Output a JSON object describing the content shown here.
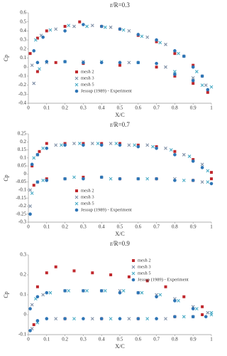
{
  "chart_data": [
    {
      "type": "scatter",
      "title": "r/R=0.3",
      "x_label": "X/C",
      "y_label": "Cp",
      "xlim": [
        0,
        1
      ],
      "xticks": [
        0,
        0.1,
        0.2,
        0.3,
        0.4,
        0.5,
        0.6,
        0.7,
        0.8,
        0.9,
        1
      ],
      "ylim": [
        -0.4,
        0.6
      ],
      "yticks": [
        -0.4,
        -0.3,
        -0.2,
        -0.1,
        0,
        0.1,
        0.2,
        0.3,
        0.4,
        0.5,
        0.6
      ],
      "grid": false,
      "legend": "lower center",
      "series": [
        {
          "name": "mesh 2",
          "color": "#c0282d",
          "marker": "square",
          "x": [
            0.01,
            0.05,
            0.1,
            0.2,
            0.28,
            0.4,
            0.5,
            0.6,
            0.7,
            0.8,
            0.9,
            0.98,
            0.05,
            0.15,
            0.3,
            0.5,
            0.7,
            0.8,
            0.9
          ],
          "values": [
            0.15,
            0.32,
            0.4,
            0.45,
            0.5,
            0.45,
            0.42,
            0.35,
            0.28,
            0.15,
            0.02,
            -0.28,
            -0.05,
            0.05,
            0.04,
            0.02,
            0,
            -0.1,
            -0.18
          ]
        },
        {
          "name": "mesh 3",
          "color": "#7f8fa6",
          "marker": "x",
          "x": [
            0.02,
            0.07,
            0.15,
            0.25,
            0.35,
            0.45,
            0.55,
            0.65,
            0.75,
            0.85,
            0.95,
            0.03,
            0.1,
            0.3,
            0.55,
            0.75,
            0.9,
            0.97
          ],
          "values": [
            0.02,
            0.35,
            0.42,
            0.45,
            0.46,
            0.44,
            0.4,
            0.33,
            0.25,
            0.12,
            -0.1,
            -0.18,
            0.05,
            0.06,
            0.05,
            0,
            -0.12,
            -0.2
          ]
        },
        {
          "name": "mesh 5",
          "color": "#4bacc6",
          "marker": "x",
          "x": [
            0.04,
            0.12,
            0.22,
            0.32,
            0.42,
            0.52,
            0.62,
            0.72,
            0.82,
            0.92,
            1,
            0.06,
            0.2,
            0.4,
            0.6,
            0.8,
            0.95
          ],
          "values": [
            0.3,
            0.41,
            0.46,
            0.45,
            0.44,
            0.41,
            0.34,
            0.27,
            0.15,
            -0.05,
            -0.22,
            -0.02,
            0.06,
            0.06,
            0.05,
            -0.05,
            -0.2
          ]
        },
        {
          "name": "Jessup (1989) - Experiment",
          "color": "#2e75b6",
          "marker": "circle",
          "x": [
            0.03,
            0.08,
            0.2,
            0.3,
            0.4,
            0.5,
            0.6,
            0.7,
            0.8,
            0.85,
            0.9,
            0.95,
            0.05,
            0.1,
            0.2,
            0.3,
            0.4,
            0.5,
            0.6,
            0.7,
            0.8,
            0.9,
            0.98
          ],
          "values": [
            0.18,
            0.33,
            0.4,
            0.47,
            0.45,
            0.42,
            0.36,
            0.3,
            0.18,
            0.12,
            0,
            -0.1,
            0.05,
            0.06,
            0.06,
            0.05,
            0.05,
            0.05,
            0.05,
            0.04,
            -0.08,
            -0.15,
            -0.25
          ]
        }
      ]
    },
    {
      "type": "scatter",
      "title": "r/R=0.7",
      "x_label": "X/C",
      "y_label": "Cp",
      "xlim": [
        0,
        1
      ],
      "xticks": [
        0,
        0.1,
        0.2,
        0.3,
        0.4,
        0.5,
        0.6,
        0.7,
        0.8,
        0.9,
        1
      ],
      "ylim": [
        -0.3,
        0.25
      ],
      "yticks": [
        -0.3,
        -0.25,
        -0.2,
        -0.15,
        -0.1,
        -0.05,
        0,
        0.05,
        0.1,
        0.15,
        0.2,
        0.25
      ],
      "grid": false,
      "legend": "lower center",
      "series": [
        {
          "name": "mesh 2",
          "color": "#c0282d",
          "marker": "square",
          "x": [
            0.02,
            0.06,
            0.1,
            0.2,
            0.3,
            0.4,
            0.5,
            0.6,
            0.7,
            0.8,
            0.9,
            1,
            0.03,
            0.1,
            0.3,
            0.5,
            0.7,
            0.9,
            1
          ],
          "values": [
            0.05,
            0.14,
            0.19,
            0.19,
            0.19,
            0.19,
            0.19,
            0.18,
            0.17,
            0.14,
            0.09,
            0.01,
            -0.07,
            -0.03,
            -0.02,
            -0.03,
            -0.03,
            -0.04,
            -0.03
          ]
        },
        {
          "name": "mesh 3",
          "color": "#7f8fa6",
          "marker": "x",
          "x": [
            0.01,
            0.05,
            0.15,
            0.25,
            0.35,
            0.45,
            0.55,
            0.65,
            0.75,
            0.85,
            0.95,
            0.01,
            0.05,
            0.2,
            0.4,
            0.6,
            0.8,
            0.95
          ],
          "values": [
            -0.1,
            0.12,
            0.18,
            0.19,
            0.19,
            0.19,
            0.18,
            0.18,
            0.16,
            0.12,
            0.06,
            -0.2,
            -0.05,
            -0.03,
            -0.02,
            -0.03,
            -0.03,
            -0.05
          ]
        },
        {
          "name": "mesh 5",
          "color": "#4bacc6",
          "marker": "x",
          "x": [
            0.03,
            0.08,
            0.18,
            0.28,
            0.38,
            0.48,
            0.58,
            0.68,
            0.78,
            0.88,
            0.98,
            0.02,
            0.08,
            0.25,
            0.45,
            0.65,
            0.85,
            0.98
          ],
          "values": [
            0.1,
            0.16,
            0.18,
            0.19,
            0.19,
            0.19,
            0.18,
            0.17,
            0.15,
            0.11,
            0.02,
            -0.12,
            -0.04,
            -0.02,
            -0.03,
            -0.03,
            -0.04,
            -0.05
          ]
        },
        {
          "name": "Jessup (1989) - Experiment",
          "color": "#2e75b6",
          "marker": "circle",
          "x": [
            0.02,
            0.05,
            0.1,
            0.2,
            0.3,
            0.4,
            0.5,
            0.6,
            0.7,
            0.8,
            0.9,
            0.95,
            0.01,
            0.05,
            0.1,
            0.2,
            0.3,
            0.4,
            0.5,
            0.6,
            0.7,
            0.8,
            0.9,
            1
          ],
          "values": [
            0.06,
            0.12,
            0.16,
            0.18,
            0.18,
            0.18,
            0.18,
            0.17,
            0.16,
            0.12,
            0.08,
            0.04,
            -0.25,
            -0.05,
            -0.04,
            -0.03,
            -0.03,
            -0.02,
            -0.03,
            -0.03,
            -0.03,
            -0.04,
            -0.04,
            -0.06
          ]
        }
      ]
    },
    {
      "type": "scatter",
      "title": "r/R=0.9",
      "x_label": "X/C",
      "y_label": "Cp",
      "xlim": [
        0,
        1
      ],
      "xticks": [
        0,
        0.1,
        0.2,
        0.3,
        0.4,
        0.5,
        0.6,
        0.7,
        0.8,
        0.9,
        1
      ],
      "ylim": [
        -0.1,
        0.3
      ],
      "yticks": [
        -0.1,
        0,
        0.1,
        0.2,
        0.3
      ],
      "grid": false,
      "legend": "upper right",
      "series": [
        {
          "name": "mesh 2",
          "color": "#c0282d",
          "marker": "square",
          "x": [
            0.05,
            0.1,
            0.15,
            0.25,
            0.35,
            0.45,
            0.55,
            0.65,
            0.75,
            0.85,
            0.95,
            0.03,
            0.2,
            0.4,
            0.6,
            0.8,
            0.95
          ],
          "values": [
            0.14,
            0.21,
            0.24,
            0.22,
            0.21,
            0.2,
            0.19,
            0.17,
            0.14,
            0.09,
            0.04,
            -0.05,
            -0.02,
            -0.02,
            -0.02,
            -0.01,
            0
          ]
        },
        {
          "name": "mesh 3",
          "color": "#7f8fa6",
          "marker": "x",
          "x": [
            0.02,
            0.08,
            0.2,
            0.3,
            0.4,
            0.5,
            0.6,
            0.7,
            0.8,
            0.9,
            0.98,
            0.02,
            0.15,
            0.35,
            0.55,
            0.75,
            0.9
          ],
          "values": [
            0.05,
            0.1,
            0.12,
            0.12,
            0.12,
            0.12,
            0.11,
            0.1,
            0.08,
            0.04,
            0.01,
            -0.07,
            -0.02,
            -0.02,
            -0.02,
            -0.02,
            -0.01
          ]
        },
        {
          "name": "mesh 5",
          "color": "#4bacc6",
          "marker": "x",
          "x": [
            0.04,
            0.12,
            0.22,
            0.32,
            0.42,
            0.52,
            0.62,
            0.72,
            0.82,
            0.92,
            1,
            0.05,
            0.25,
            0.45,
            0.65,
            0.85,
            1
          ],
          "values": [
            0.08,
            0.11,
            0.12,
            0.12,
            0.12,
            0.12,
            0.11,
            0.1,
            0.07,
            0.03,
            0,
            -0.04,
            -0.02,
            -0.02,
            -0.02,
            -0.01,
            0.01
          ]
        },
        {
          "name": "Jessup (1989) - Experiment",
          "color": "#2e75b6",
          "marker": "circle",
          "x": [
            0.01,
            0.05,
            0.1,
            0.2,
            0.3,
            0.4,
            0.5,
            0.6,
            0.7,
            0.8,
            0.9,
            0.01,
            0.05,
            0.1,
            0.2,
            0.3,
            0.4,
            0.5,
            0.6,
            0.7,
            0.8,
            0.9,
            0.97
          ],
          "values": [
            0.03,
            0.09,
            0.11,
            0.12,
            0.12,
            0.12,
            0.11,
            0.11,
            0.09,
            0.07,
            0.03,
            -0.08,
            -0.03,
            -0.02,
            -0.02,
            -0.02,
            -0.02,
            -0.02,
            -0.02,
            -0.02,
            -0.01,
            -0.01,
            -0.01
          ]
        }
      ]
    }
  ]
}
